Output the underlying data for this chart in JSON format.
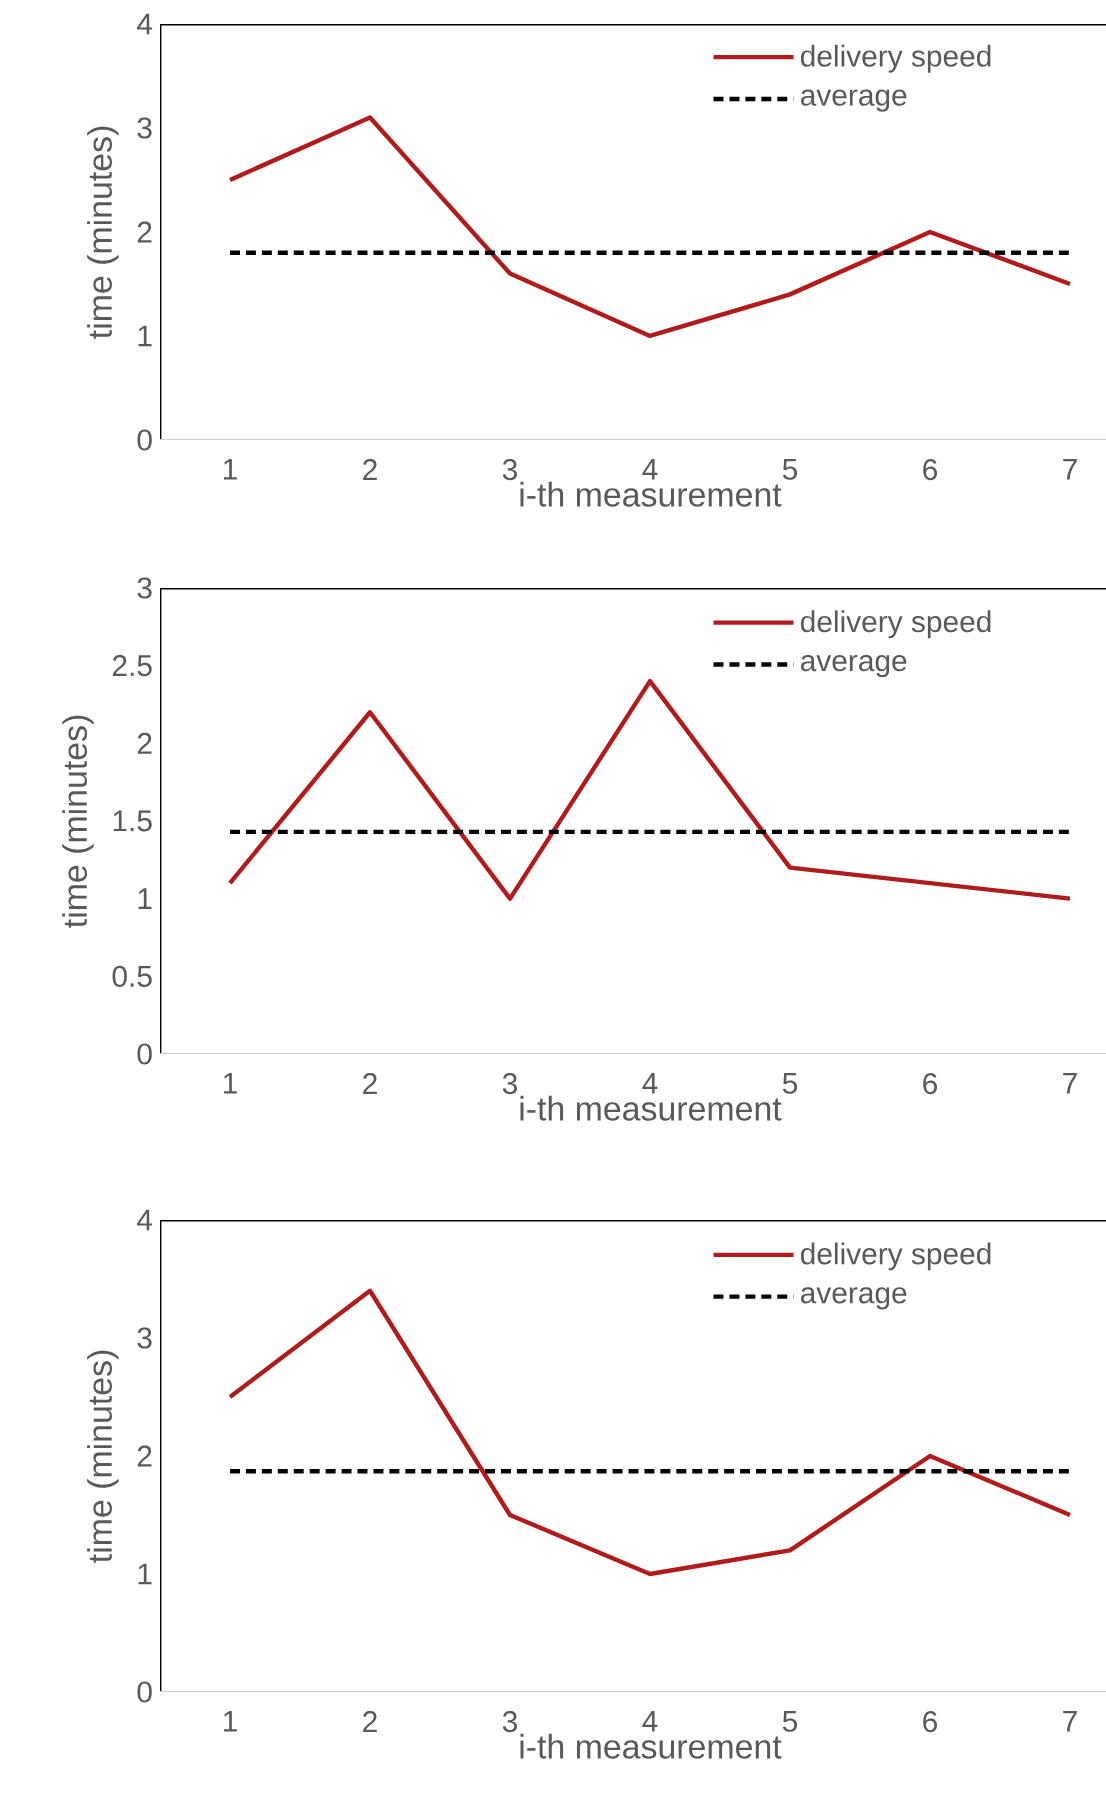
{
  "chart_data": [
    {
      "type": "line",
      "xlabel": "i-th measurement",
      "ylabel": "time (minutes)",
      "categories": [
        "1",
        "2",
        "3",
        "4",
        "5",
        "6",
        "7"
      ],
      "series": [
        {
          "name": "delivery speed",
          "color": "#b01c1c",
          "line_style": "solid",
          "values": [
            2.5,
            3.1,
            1.6,
            1.0,
            1.4,
            2.0,
            1.5
          ]
        },
        {
          "name": "average",
          "color": "#000000",
          "line_style": "dashed",
          "values": [
            1.8,
            1.8,
            1.8,
            1.8,
            1.8,
            1.8,
            1.8
          ]
        }
      ],
      "ylim": [
        0,
        4
      ],
      "yticks": [
        0,
        1,
        2,
        3,
        4
      ],
      "legend": "top right",
      "marker": "none"
    },
    {
      "type": "line",
      "xlabel": "i-th measurement",
      "ylabel": "time (minutes)",
      "categories": [
        "1",
        "2",
        "3",
        "4",
        "5",
        "6",
        "7"
      ],
      "series": [
        {
          "name": "delivery speed",
          "color": "#b01c1c",
          "line_style": "solid",
          "values": [
            1.1,
            2.2,
            1.0,
            2.4,
            1.2,
            1.1,
            1.0
          ]
        },
        {
          "name": "average",
          "color": "#000000",
          "line_style": "dashed",
          "values": [
            1.43,
            1.43,
            1.43,
            1.43,
            1.43,
            1.43,
            1.43
          ]
        }
      ],
      "ylim": [
        0,
        3
      ],
      "yticks": [
        0,
        0.5,
        1,
        1.5,
        2,
        2.5,
        3
      ],
      "legend": "top right",
      "marker": "none"
    },
    {
      "type": "line",
      "xlabel": "i-th measurement",
      "ylabel": "time (minutes)",
      "categories": [
        "1",
        "2",
        "3",
        "4",
        "5",
        "6",
        "7"
      ],
      "series": [
        {
          "name": "delivery speed",
          "color": "#b01c1c",
          "line_style": "solid",
          "values": [
            2.5,
            3.4,
            1.5,
            1.0,
            1.2,
            2.0,
            1.5
          ]
        },
        {
          "name": "average",
          "color": "#000000",
          "line_style": "dashed",
          "values": [
            1.87,
            1.87,
            1.87,
            1.87,
            1.87,
            1.87,
            1.87
          ]
        }
      ],
      "ylim": [
        0,
        4
      ],
      "yticks": [
        0,
        1,
        2,
        3,
        4
      ],
      "legend": "top right",
      "marker": "none"
    }
  ]
}
